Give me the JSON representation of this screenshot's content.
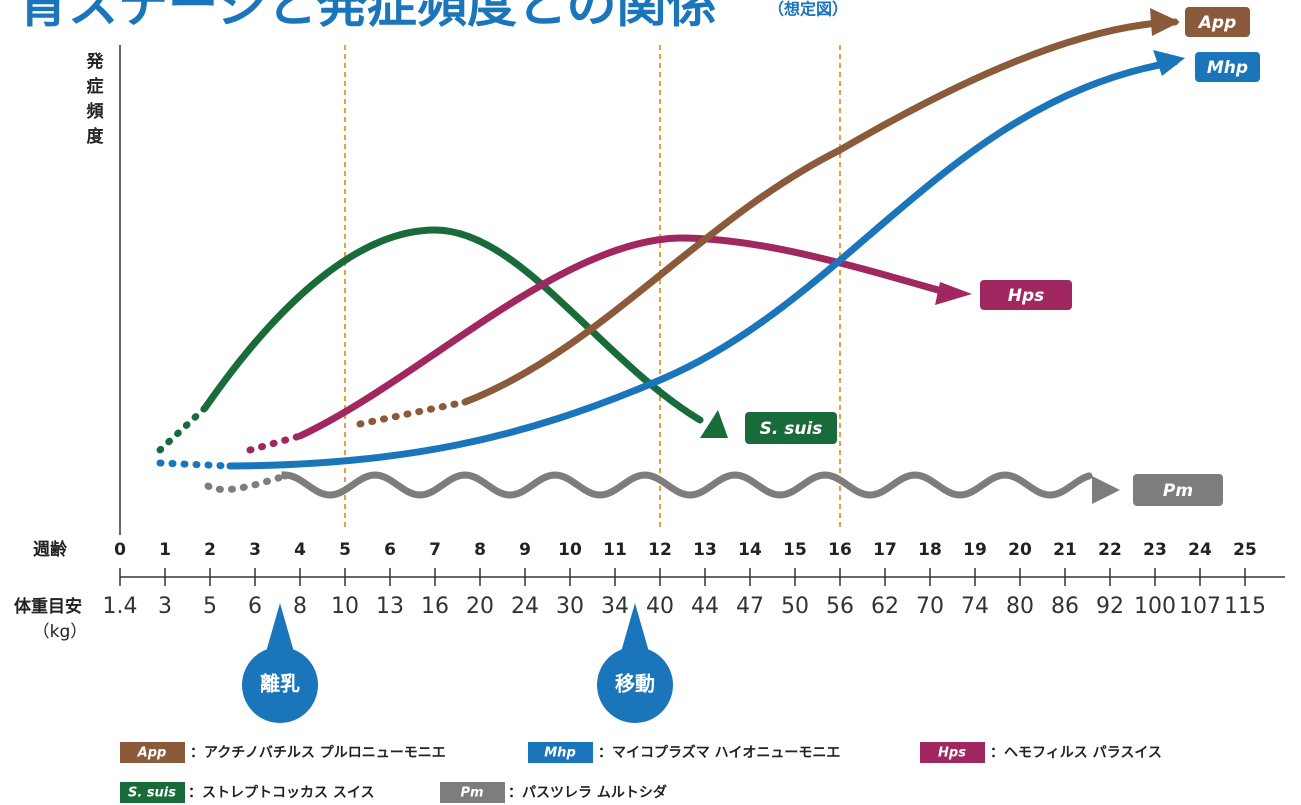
{
  "title": "育ステージと発症頻度との関係",
  "subtitle": "（想定図）",
  "y_label": "発症頻度",
  "week_label": "週齢",
  "weight_label": "体重目安",
  "weight_unit": "（kg）",
  "weeks": [
    0,
    1,
    2,
    3,
    4,
    5,
    6,
    7,
    8,
    9,
    10,
    11,
    12,
    13,
    14,
    15,
    16,
    17,
    18,
    19,
    20,
    21,
    22,
    23,
    24,
    25
  ],
  "weights": [
    1.4,
    3,
    5,
    6,
    8,
    10,
    13,
    16,
    20,
    24,
    30,
    34,
    40,
    44,
    47,
    50,
    56,
    62,
    70,
    74,
    80,
    86,
    92,
    100,
    107,
    115
  ],
  "highlighted": [
    5,
    8,
    10,
    12,
    15,
    18,
    20,
    23
  ],
  "highlight_color": "#e4202a",
  "markers": [
    {
      "label": "離乳"
    },
    {
      "label": "移動"
    }
  ],
  "curve_labels": [
    "App",
    "Mhp",
    "Hps",
    "S. suis",
    "Pm"
  ],
  "legend": [
    {
      "name": "App",
      "text": "：アクチノバチルス プルロニューモニエ"
    },
    {
      "name": "Mhp",
      "text": "：マイコプラズマ ハイオニューモニエ"
    },
    {
      "name": "Hps",
      "text": "：ヘモフィルス パラスイス"
    },
    {
      "name": "S. suis",
      "text": "：ストレプトコッカス スイス"
    },
    {
      "name": "Pm",
      "text": "：パスツレラ ムルトシダ"
    }
  ]
}
